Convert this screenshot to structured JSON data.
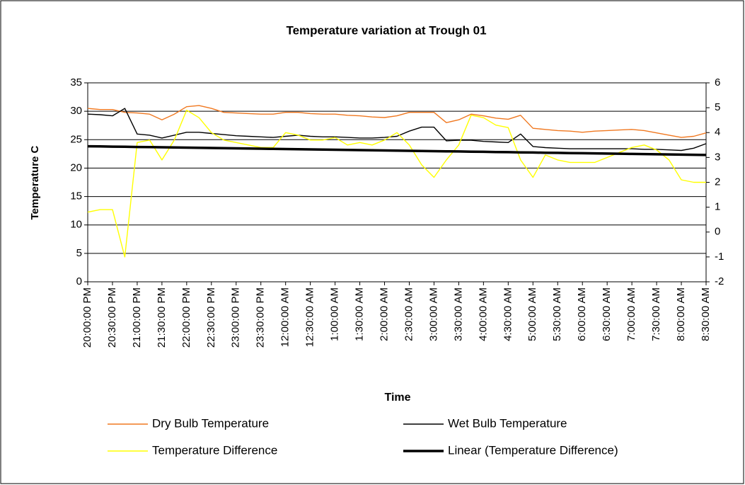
{
  "chart_data": {
    "type": "line",
    "title": "Temperature variation at Trough 01",
    "xlabel": "Time",
    "ylabel": "Temperature C",
    "categories": [
      "20:00:00 PM",
      null,
      "20:30:00 PM",
      null,
      "21:00:00 PM",
      null,
      "21:30:00 PM",
      null,
      "22:00:00 PM",
      null,
      "22:30:00 PM",
      null,
      "23:00:00 PM",
      null,
      "23:30:00 PM",
      null,
      "12:00:00 AM",
      null,
      "12:30:00 AM",
      null,
      "1:00:00 AM",
      null,
      "1:30:00 AM",
      null,
      "2:00:00 AM",
      null,
      "2:30:00 AM",
      null,
      "3:00:00 AM",
      null,
      "3:30:00 AM",
      null,
      "4:00:00 AM",
      null,
      "4:30:00 AM",
      null,
      "5:00:00 AM",
      null,
      "5:30:00 AM",
      null,
      "6:00:00 AM",
      null,
      "6:30:00 AM",
      null,
      "7:00:00 AM",
      null,
      "7:30:00 AM",
      null,
      "8:00:00 AM",
      null,
      "8:30:00 AM"
    ],
    "ylim": [
      0,
      35
    ],
    "yticks": [
      0,
      5,
      10,
      15,
      20,
      25,
      30,
      35
    ],
    "y2lim": [
      -2,
      6
    ],
    "y2ticks": [
      -2,
      -1,
      0,
      1,
      2,
      3,
      4,
      5,
      6
    ],
    "grid": true,
    "legend": "bottom",
    "series": [
      {
        "name": "Dry Bulb Temperature",
        "color": "#f07820",
        "values": [
          30.5,
          30.3,
          30.3,
          29.8,
          29.7,
          29.5,
          28.5,
          29.5,
          30.8,
          31,
          30.5,
          29.8,
          29.7,
          29.6,
          29.5,
          29.5,
          29.8,
          29.8,
          29.6,
          29.5,
          29.5,
          29.3,
          29.2,
          29,
          28.9,
          29.2,
          29.8,
          29.8,
          29.8,
          28,
          28.5,
          29.5,
          29.2,
          28.8,
          28.6,
          29.3,
          27,
          26.8,
          26.6,
          26.5,
          26.3,
          26.5,
          26.6,
          26.7,
          26.8,
          26.6,
          26.2,
          25.8,
          25.4,
          25.6,
          26.2
        ]
      },
      {
        "name": "Wet Bulb Temperature",
        "color": "#000000",
        "values": [
          29.5,
          29.4,
          29.2,
          30.5,
          26,
          25.8,
          25.3,
          25.8,
          26.3,
          26.3,
          26.1,
          25.9,
          25.7,
          25.6,
          25.5,
          25.4,
          25.6,
          25.8,
          25.6,
          25.5,
          25.5,
          25.4,
          25.3,
          25.3,
          25.4,
          25.6,
          26.5,
          27.2,
          27.2,
          24.8,
          24.9,
          24.9,
          24.7,
          24.6,
          24.5,
          26,
          23.8,
          23.6,
          23.5,
          23.4,
          23.4,
          23.4,
          23.4,
          23.4,
          23.4,
          23.3,
          23.3,
          23.2,
          23.1,
          23.5,
          24.3
        ]
      },
      {
        "name": "Temperature Difference",
        "color": "#ffff00",
        "axis": "y2",
        "values": [
          0.8,
          0.9,
          0.9,
          -1,
          3.6,
          3.7,
          2.9,
          3.7,
          4.9,
          4.6,
          4.0,
          3.7,
          3.6,
          3.5,
          3.4,
          3.4,
          4.0,
          3.9,
          3.7,
          3.7,
          3.8,
          3.5,
          3.6,
          3.5,
          3.7,
          4.0,
          3.5,
          2.7,
          2.2,
          2.9,
          3.5,
          4.7,
          4.6,
          4.3,
          4.2,
          2.9,
          2.2,
          3.1,
          2.9,
          2.8,
          2.8,
          2.8,
          3.0,
          3.2,
          3.4,
          3.5,
          3.3,
          2.9,
          2.1,
          2.0,
          2.0
        ]
      },
      {
        "name": "Linear (Temperature Difference)",
        "color": "#000000",
        "axis": "y2",
        "values": [
          3.45,
          3.443,
          3.436,
          3.429,
          3.422,
          3.415,
          3.408,
          3.401,
          3.394,
          3.387,
          3.38,
          3.373,
          3.366,
          3.359,
          3.352,
          3.345,
          3.338,
          3.331,
          3.324,
          3.317,
          3.31,
          3.303,
          3.296,
          3.289,
          3.282,
          3.275,
          3.268,
          3.261,
          3.254,
          3.247,
          3.24,
          3.233,
          3.226,
          3.219,
          3.212,
          3.205,
          3.198,
          3.191,
          3.184,
          3.177,
          3.17,
          3.163,
          3.156,
          3.149,
          3.142,
          3.135,
          3.128,
          3.121,
          3.114,
          3.107,
          3.1
        ]
      }
    ]
  }
}
